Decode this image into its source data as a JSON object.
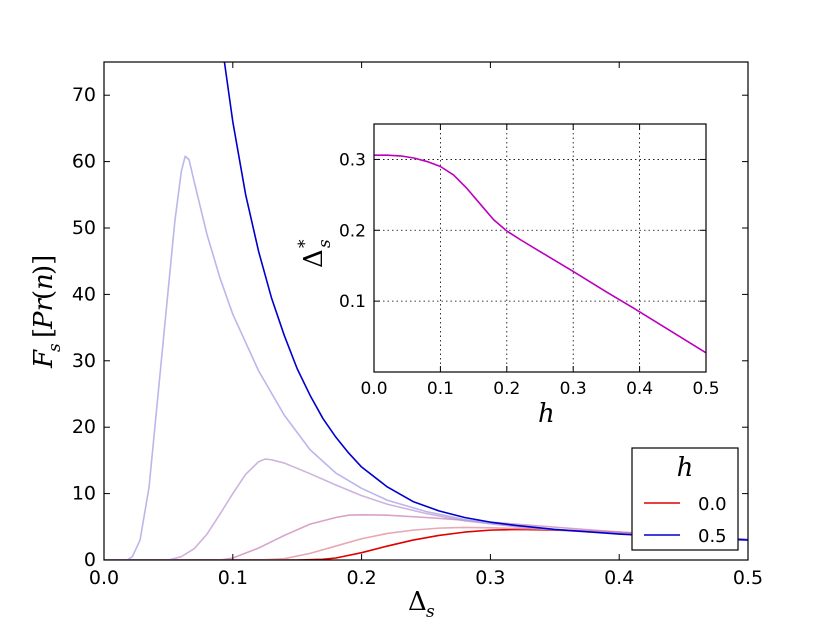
{
  "chart_data": [
    {
      "type": "line",
      "title": "",
      "xlabel": "Δ_s",
      "ylabel": "F_s [Pr(n)]",
      "xlim": [
        0.0,
        0.5
      ],
      "ylim": [
        0,
        75
      ],
      "xticks": [
        "0.0",
        "0.1",
        "0.2",
        "0.3",
        "0.4",
        "0.5"
      ],
      "yticks": [
        "0",
        "10",
        "20",
        "30",
        "40",
        "50",
        "60",
        "70"
      ],
      "grid": false,
      "legend": {
        "title": "h",
        "placement": "bottom-right",
        "entries": [
          {
            "label": "0.0",
            "color": "#e00000"
          },
          {
            "label": "0.5",
            "color": "#0000cc"
          }
        ]
      },
      "series": [
        {
          "color": "#e00000",
          "opacity": 1.0,
          "points": [
            [
              0.0,
              0
            ],
            [
              0.15,
              0
            ],
            [
              0.17,
              0.1
            ],
            [
              0.18,
              0.3
            ],
            [
              0.2,
              1.1
            ],
            [
              0.22,
              2.1
            ],
            [
              0.24,
              3.0
            ],
            [
              0.26,
              3.7
            ],
            [
              0.28,
              4.2
            ],
            [
              0.3,
              4.5
            ],
            [
              0.32,
              4.6
            ],
            [
              0.34,
              4.55
            ],
            [
              0.36,
              4.45
            ],
            [
              0.38,
              4.3
            ],
            [
              0.4,
              4.1
            ],
            [
              0.42,
              3.9
            ],
            [
              0.44,
              3.7
            ],
            [
              0.46,
              3.5
            ],
            [
              0.48,
              3.3
            ],
            [
              0.5,
              3.1
            ]
          ]
        },
        {
          "color": "#e08a9a",
          "opacity": 0.75,
          "points": [
            [
              0.0,
              0
            ],
            [
              0.12,
              0
            ],
            [
              0.14,
              0.2
            ],
            [
              0.16,
              1.0
            ],
            [
              0.18,
              2.1
            ],
            [
              0.2,
              3.2
            ],
            [
              0.22,
              4.0
            ],
            [
              0.24,
              4.5
            ],
            [
              0.26,
              4.8
            ],
            [
              0.28,
              4.9
            ],
            [
              0.3,
              4.85
            ],
            [
              0.33,
              4.7
            ],
            [
              0.36,
              4.5
            ],
            [
              0.4,
              4.2
            ],
            [
              0.44,
              3.8
            ],
            [
              0.48,
              3.4
            ],
            [
              0.5,
              3.1
            ]
          ]
        },
        {
          "color": "#c87ab4",
          "opacity": 0.7,
          "points": [
            [
              0.0,
              0
            ],
            [
              0.09,
              0
            ],
            [
              0.1,
              0.3
            ],
            [
              0.12,
              1.8
            ],
            [
              0.14,
              3.7
            ],
            [
              0.16,
              5.4
            ],
            [
              0.18,
              6.4
            ],
            [
              0.19,
              6.75
            ],
            [
              0.2,
              6.8
            ],
            [
              0.22,
              6.75
            ],
            [
              0.25,
              6.4
            ],
            [
              0.28,
              6.0
            ],
            [
              0.32,
              5.4
            ],
            [
              0.36,
              4.8
            ],
            [
              0.4,
              4.2
            ],
            [
              0.45,
              3.6
            ],
            [
              0.5,
              3.1
            ]
          ]
        },
        {
          "color": "#b893cf",
          "opacity": 0.7,
          "points": [
            [
              0.0,
              0
            ],
            [
              0.05,
              0
            ],
            [
              0.06,
              0.5
            ],
            [
              0.07,
              1.7
            ],
            [
              0.08,
              3.9
            ],
            [
              0.09,
              6.9
            ],
            [
              0.1,
              10.0
            ],
            [
              0.11,
              12.9
            ],
            [
              0.12,
              14.8
            ],
            [
              0.125,
              15.2
            ],
            [
              0.13,
              15.1
            ],
            [
              0.14,
              14.6
            ],
            [
              0.16,
              13.0
            ],
            [
              0.18,
              11.3
            ],
            [
              0.2,
              9.7
            ],
            [
              0.22,
              8.4
            ],
            [
              0.25,
              7.0
            ],
            [
              0.28,
              5.9
            ],
            [
              0.32,
              5.0
            ],
            [
              0.36,
              4.4
            ],
            [
              0.4,
              4.0
            ],
            [
              0.45,
              3.5
            ],
            [
              0.5,
              3.1
            ]
          ]
        },
        {
          "color": "#a9a5e6",
          "opacity": 0.8,
          "points": [
            [
              0.0,
              0
            ],
            [
              0.018,
              0
            ],
            [
              0.022,
              0.5
            ],
            [
              0.028,
              3.0
            ],
            [
              0.035,
              11.0
            ],
            [
              0.042,
              25.0
            ],
            [
              0.05,
              41.0
            ],
            [
              0.055,
              51.0
            ],
            [
              0.06,
              58.5
            ],
            [
              0.063,
              60.8
            ],
            [
              0.066,
              60.3
            ],
            [
              0.07,
              57.0
            ],
            [
              0.08,
              49.0
            ],
            [
              0.09,
              42.5
            ],
            [
              0.1,
              37.0
            ],
            [
              0.12,
              28.5
            ],
            [
              0.14,
              21.8
            ],
            [
              0.16,
              16.6
            ],
            [
              0.18,
              13.1
            ],
            [
              0.2,
              10.8
            ],
            [
              0.22,
              9.0
            ],
            [
              0.25,
              7.3
            ],
            [
              0.28,
              6.1
            ],
            [
              0.3,
              5.5
            ],
            [
              0.35,
              4.6
            ],
            [
              0.4,
              4.0
            ],
            [
              0.45,
              3.5
            ],
            [
              0.5,
              3.1
            ]
          ]
        },
        {
          "color": "#0000cc",
          "opacity": 1.0,
          "points": [
            [
              0.0935,
              75.0
            ],
            [
              0.1,
              66.0
            ],
            [
              0.11,
              55.0
            ],
            [
              0.12,
              46.5
            ],
            [
              0.13,
              39.5
            ],
            [
              0.14,
              33.8
            ],
            [
              0.15,
              28.8
            ],
            [
              0.16,
              24.8
            ],
            [
              0.17,
              21.3
            ],
            [
              0.18,
              18.5
            ],
            [
              0.19,
              16.1
            ],
            [
              0.2,
              14.0
            ],
            [
              0.22,
              11.0
            ],
            [
              0.24,
              8.8
            ],
            [
              0.26,
              7.4
            ],
            [
              0.28,
              6.4
            ],
            [
              0.3,
              5.7
            ],
            [
              0.32,
              5.2
            ],
            [
              0.35,
              4.6
            ],
            [
              0.4,
              3.9
            ],
            [
              0.45,
              3.4
            ],
            [
              0.5,
              3.0
            ]
          ]
        }
      ]
    },
    {
      "type": "line",
      "title": "",
      "xlabel": "h",
      "ylabel": "Δ_s*",
      "xlim": [
        0.0,
        0.5
      ],
      "ylim": [
        0.0,
        0.35
      ],
      "xticks": [
        "0.0",
        "0.1",
        "0.2",
        "0.3",
        "0.4",
        "0.5"
      ],
      "yticks": [
        "0.1",
        "0.2",
        "0.3"
      ],
      "grid": true,
      "series": [
        {
          "color": "#bb00bb",
          "points": [
            [
              0.0,
              0.306
            ],
            [
              0.02,
              0.306
            ],
            [
              0.04,
              0.305
            ],
            [
              0.06,
              0.302
            ],
            [
              0.08,
              0.297
            ],
            [
              0.1,
              0.29
            ],
            [
              0.12,
              0.278
            ],
            [
              0.14,
              0.259
            ],
            [
              0.16,
              0.237
            ],
            [
              0.18,
              0.215
            ],
            [
              0.2,
              0.199
            ],
            [
              0.22,
              0.187
            ],
            [
              0.25,
              0.17
            ],
            [
              0.3,
              0.142
            ],
            [
              0.35,
              0.113
            ],
            [
              0.4,
              0.085
            ],
            [
              0.45,
              0.056
            ],
            [
              0.5,
              0.027
            ]
          ]
        }
      ]
    }
  ]
}
